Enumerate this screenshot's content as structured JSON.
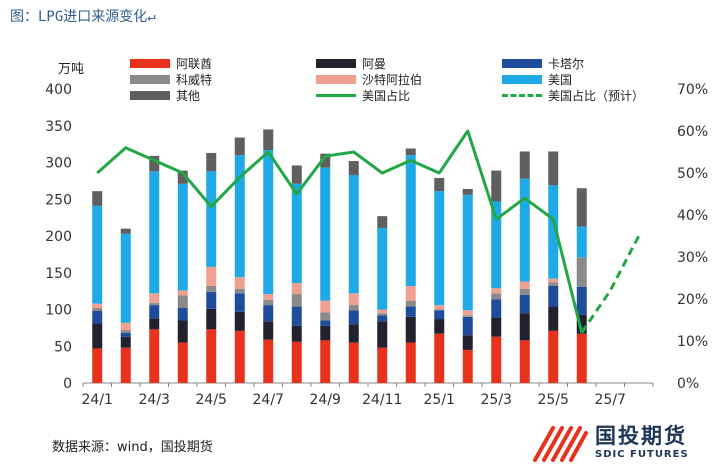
{
  "header": {
    "title": "图：LPG进口来源变化↵",
    "left_unit": "万吨"
  },
  "footer": {
    "source": "数据来源：wind，国投期货",
    "brand_name": "国投期货",
    "brand_sub": "SDIC FUTURES"
  },
  "colors": {
    "阿联酋": "#e8321e",
    "阿曼": "#22222e",
    "卡塔尔": "#1f4d9c",
    "科威特": "#8a8a8a",
    "沙特阿拉伯": "#f0a090",
    "美国": "#1fa9e6",
    "其他": "#5f5f5f",
    "line": "#21a845"
  },
  "chart_data": {
    "type": "bar",
    "stacked": true,
    "y_left_ticks": [
      "0",
      "50",
      "100",
      "150",
      "200",
      "250",
      "300",
      "350",
      "400"
    ],
    "y_right_ticks": [
      "0%",
      "10%",
      "20%",
      "30%",
      "40%",
      "50%",
      "60%",
      "70%"
    ],
    "ylim": [
      0,
      400
    ],
    "ylim_right": [
      0,
      0.7
    ],
    "x_tick_labels": [
      "24/1",
      "24/3",
      "24/5",
      "24/7",
      "24/9",
      "24/11",
      "25/1",
      "25/3",
      "25/5",
      "25/7"
    ],
    "categories": [
      "24/1",
      "24/2",
      "24/3",
      "24/4",
      "24/5",
      "24/6",
      "24/7",
      "24/8",
      "24/9",
      "24/10",
      "24/11",
      "24/12",
      "25/1",
      "25/2",
      "25/3",
      "25/4",
      "25/5",
      "25/6",
      "25/7",
      "25/8"
    ],
    "series": [
      {
        "name": "阿联酋",
        "values": [
          47,
          48,
          73,
          55,
          73,
          71,
          59,
          56,
          58,
          55,
          48,
          55,
          67,
          45,
          63,
          58,
          71,
          67,
          null,
          null
        ]
      },
      {
        "name": "阿曼",
        "values": [
          34,
          15,
          15,
          30,
          28,
          26,
          25,
          22,
          20,
          25,
          36,
          35,
          20,
          20,
          26,
          37,
          33,
          26,
          null,
          null
        ]
      },
      {
        "name": "卡塔尔",
        "values": [
          17,
          5,
          18,
          17,
          23,
          25,
          22,
          26,
          7,
          19,
          8,
          14,
          12,
          25,
          25,
          25,
          28,
          38,
          null,
          null
        ]
      },
      {
        "name": "科威特",
        "values": [
          4,
          4,
          3,
          17,
          8,
          6,
          7,
          17,
          11,
          7,
          3,
          8,
          1,
          2,
          8,
          8,
          5,
          40,
          null,
          null
        ]
      },
      {
        "name": "沙特阿拉伯",
        "values": [
          6,
          10,
          13,
          7,
          26,
          16,
          8,
          15,
          16,
          16,
          5,
          20,
          6,
          7,
          7,
          10,
          5,
          0,
          null,
          null
        ]
      },
      {
        "name": "美国",
        "values": [
          133,
          121,
          166,
          145,
          130,
          166,
          196,
          135,
          181,
          161,
          111,
          178,
          155,
          157,
          118,
          140,
          127,
          42,
          null,
          null
        ]
      },
      {
        "name": "其他",
        "values": [
          20,
          7,
          21,
          18,
          25,
          24,
          28,
          25,
          19,
          19,
          16,
          9,
          18,
          8,
          42,
          37,
          46,
          52,
          null,
          null
        ]
      }
    ],
    "line_series": [
      {
        "name": "美国占比",
        "axis": "right",
        "values": [
          0.5,
          0.56,
          0.53,
          0.5,
          0.42,
          0.49,
          0.55,
          0.45,
          0.54,
          0.55,
          0.5,
          0.53,
          0.5,
          0.6,
          0.39,
          0.44,
          0.39,
          0.12,
          null,
          null
        ]
      },
      {
        "name": "美国占比（预计）",
        "axis": "right",
        "dashed": true,
        "values": [
          null,
          null,
          null,
          null,
          null,
          null,
          null,
          null,
          null,
          null,
          null,
          null,
          null,
          null,
          null,
          null,
          null,
          0.12,
          0.22,
          0.35
        ]
      }
    ]
  }
}
